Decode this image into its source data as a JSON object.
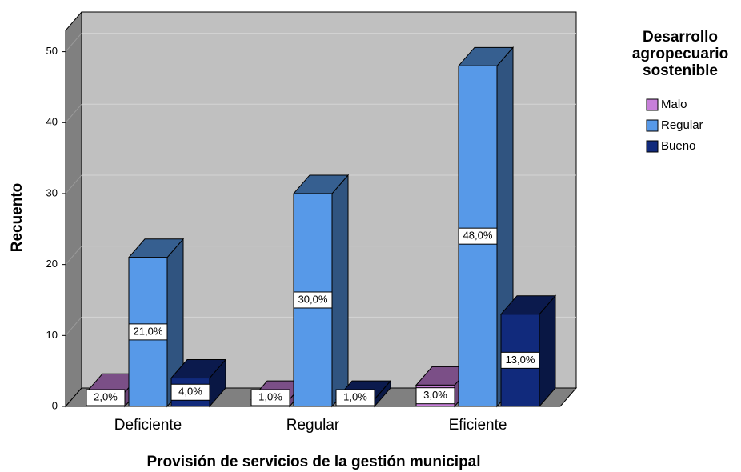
{
  "chart_data": {
    "type": "bar3d",
    "y_label": "Recuento",
    "x_label": "Provisión de servicios de la gestión municipal",
    "legend_title": "Desarrollo agropecuario sostenible",
    "categories": [
      "Deficiente",
      "Regular",
      "Eficiente"
    ],
    "series": [
      {
        "name": "Malo",
        "color": "#c77fd9",
        "values": [
          2,
          1,
          3
        ],
        "value_labels": [
          "2,0%",
          "1,0%",
          "3,0%"
        ]
      },
      {
        "name": "Regular",
        "color": "#5799e8",
        "values": [
          21,
          30,
          48
        ],
        "value_labels": [
          "21,0%",
          "30,0%",
          "48,0%"
        ]
      },
      {
        "name": "Bueno",
        "color": "#112a7c",
        "values": [
          4,
          1,
          13
        ],
        "value_labels": [
          "4,0%",
          "1,0%",
          "13,0%"
        ]
      }
    ],
    "ylim": [
      0,
      53
    ],
    "yticks": [
      0,
      10,
      20,
      30,
      40,
      50
    ],
    "grid": true,
    "legend": "right"
  }
}
